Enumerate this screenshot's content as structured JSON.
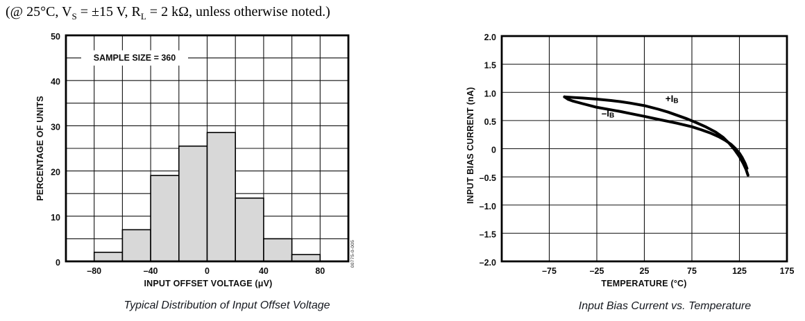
{
  "header": {
    "parts": [
      {
        "text": "(@ 25°C, V"
      },
      {
        "text": "S",
        "sub": true
      },
      {
        "text": " = ±15 V, R"
      },
      {
        "text": "L",
        "sub": true
      },
      {
        "text": " = 2 kΩ, unless otherwise noted.)"
      }
    ]
  },
  "watermark": "00775-0-005",
  "chart_data": [
    {
      "id": "offset-histogram",
      "type": "bar",
      "title": "Typical Distribution of Input Offset Voltage",
      "xlabel": "INPUT OFFSET VOLTAGE (μV)",
      "ylabel": "PERCENTAGE OF UNITS",
      "annotation": {
        "text": "SAMPLE SIZE = 360",
        "line_value": 45
      },
      "xlim": [
        -100,
        100
      ],
      "ylim": [
        0,
        50
      ],
      "x_grid_step": 20,
      "y_grid_step": 5,
      "x_ticks": [
        {
          "v": -80,
          "t": "–80"
        },
        {
          "v": -40,
          "t": "–40"
        },
        {
          "v": 0,
          "t": "0"
        },
        {
          "v": 40,
          "t": "40"
        },
        {
          "v": 80,
          "t": "80"
        }
      ],
      "y_ticks": [
        {
          "v": 50,
          "t": "50"
        },
        {
          "v": 40,
          "t": "40"
        },
        {
          "v": 30,
          "t": "30"
        },
        {
          "v": 20,
          "t": "20"
        },
        {
          "v": 10,
          "t": "10"
        },
        {
          "v": 0,
          "t": "0"
        }
      ],
      "bins": [
        {
          "x0": -80,
          "x1": -60,
          "value": 2
        },
        {
          "x0": -60,
          "x1": -40,
          "value": 7
        },
        {
          "x0": -40,
          "x1": -20,
          "value": 19
        },
        {
          "x0": -20,
          "x1": 0,
          "value": 25.5
        },
        {
          "x0": 0,
          "x1": 20,
          "value": 28.5
        },
        {
          "x0": 20,
          "x1": 40,
          "value": 14
        },
        {
          "x0": 40,
          "x1": 60,
          "value": 5
        },
        {
          "x0": 60,
          "x1": 80,
          "value": 1.5
        }
      ],
      "bar_fill": "#d8d8d8",
      "grid_color": "#111111"
    },
    {
      "id": "bias-vs-temperature",
      "type": "line",
      "title": "Input Bias Current vs. Temperature",
      "xlabel": "TEMPERATURE (°C)",
      "ylabel": "INPUT BIAS CURRENT (nA)",
      "xlim": [
        -125,
        175
      ],
      "ylim": [
        -2,
        2
      ],
      "x_grid_step": 50,
      "y_grid_step": 0.5,
      "x_ticks": [
        {
          "v": -75,
          "t": "–75"
        },
        {
          "v": -25,
          "t": "–25"
        },
        {
          "v": 25,
          "t": "25"
        },
        {
          "v": 75,
          "t": "75"
        },
        {
          "v": 125,
          "t": "125"
        },
        {
          "v": 175,
          "t": "175"
        }
      ],
      "y_ticks": [
        {
          "v": 2.0,
          "t": "2.0"
        },
        {
          "v": 1.5,
          "t": "1.5"
        },
        {
          "v": 1.0,
          "t": "1.0"
        },
        {
          "v": 0.5,
          "t": "0.5"
        },
        {
          "v": 0,
          "t": "0"
        },
        {
          "v": -0.5,
          "t": "–0.5"
        },
        {
          "v": -1.0,
          "t": "–1.0"
        },
        {
          "v": -1.5,
          "t": "–1.5"
        },
        {
          "v": -2.0,
          "t": "–2.0"
        }
      ],
      "series": [
        {
          "name": "+IB",
          "label": {
            "prefix": "+I",
            "sub": "B"
          },
          "label_at": [
            54,
            0.89
          ],
          "points": [
            [
              -59,
              0.92
            ],
            [
              -50,
              0.91
            ],
            [
              -40,
              0.9
            ],
            [
              -25,
              0.88
            ],
            [
              -10,
              0.855
            ],
            [
              0,
              0.835
            ],
            [
              10,
              0.81
            ],
            [
              25,
              0.765
            ],
            [
              40,
              0.7
            ],
            [
              50,
              0.65
            ],
            [
              60,
              0.59
            ],
            [
              70,
              0.53
            ],
            [
              80,
              0.46
            ],
            [
              90,
              0.385
            ],
            [
              100,
              0.295
            ],
            [
              108,
              0.2
            ],
            [
              114,
              0.1
            ],
            [
              120,
              -0.02
            ],
            [
              125,
              -0.14
            ],
            [
              129,
              -0.26
            ],
            [
              132,
              -0.37
            ],
            [
              134,
              -0.47
            ]
          ]
        },
        {
          "name": "–IB",
          "label": {
            "prefix": "–I",
            "sub": "B"
          },
          "label_at": [
            -13.3,
            0.635
          ],
          "points": [
            [
              -59,
              0.92
            ],
            [
              -55,
              0.875
            ],
            [
              -50,
              0.845
            ],
            [
              -40,
              0.8
            ],
            [
              -25,
              0.735
            ],
            [
              -10,
              0.69
            ],
            [
              0,
              0.66
            ],
            [
              10,
              0.625
            ],
            [
              25,
              0.575
            ],
            [
              40,
              0.52
            ],
            [
              50,
              0.485
            ],
            [
              60,
              0.45
            ],
            [
              70,
              0.41
            ],
            [
              75,
              0.39
            ],
            [
              85,
              0.335
            ],
            [
              95,
              0.275
            ],
            [
              103,
              0.215
            ],
            [
              110,
              0.15
            ],
            [
              116,
              0.08
            ],
            [
              121,
              0.0
            ],
            [
              125,
              -0.08
            ],
            [
              128,
              -0.16
            ],
            [
              131,
              -0.26
            ],
            [
              133,
              -0.35
            ]
          ]
        }
      ],
      "line_color": "#000000",
      "grid_color": "#111111"
    }
  ]
}
